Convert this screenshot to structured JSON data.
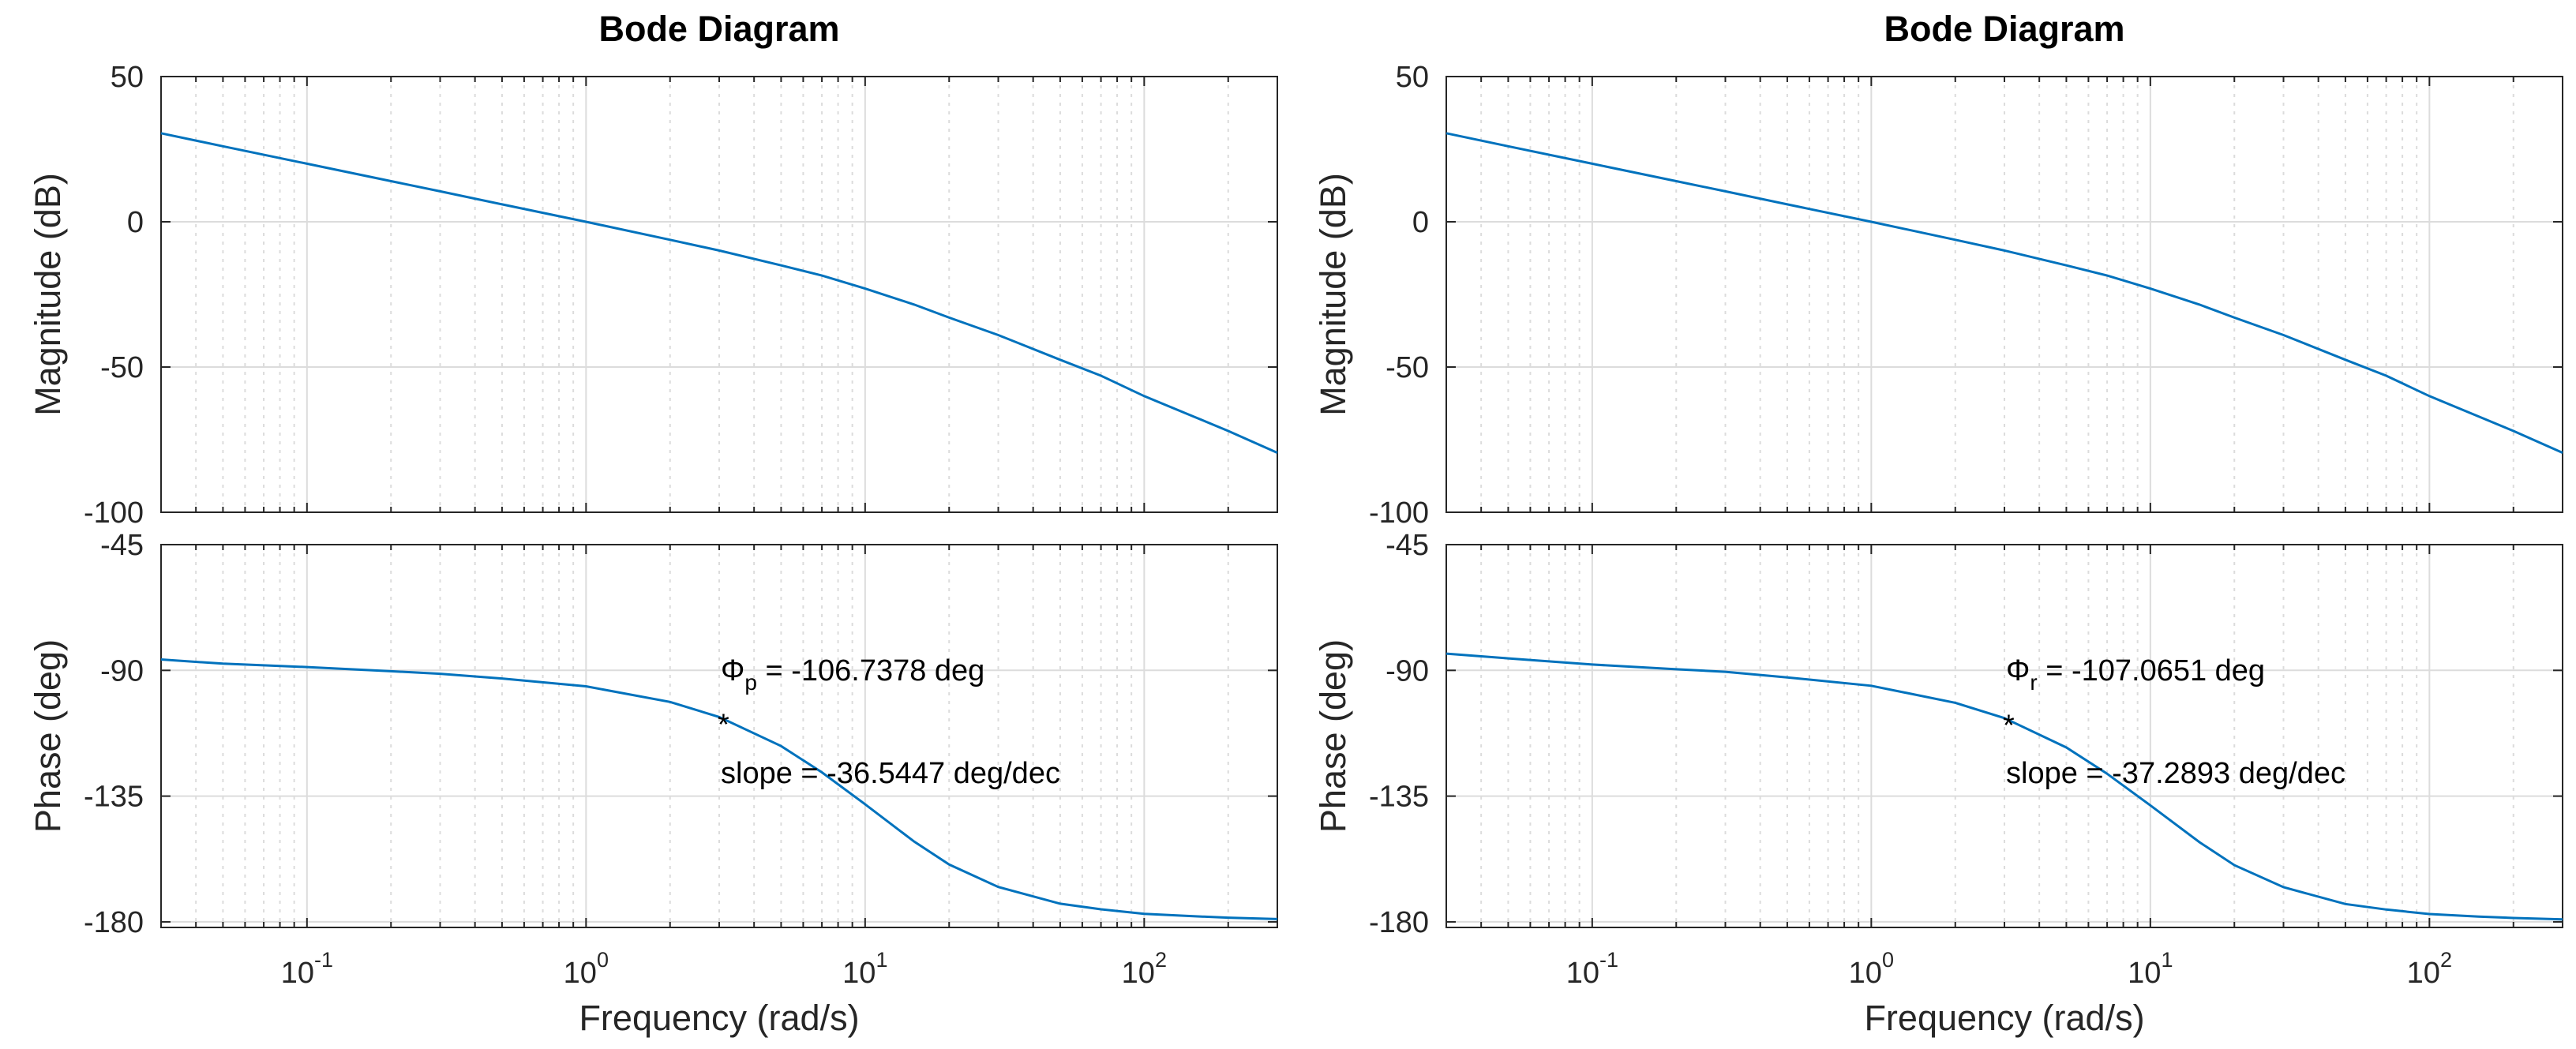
{
  "chart_data": [
    {
      "type": "line",
      "title": "Bode Diagram",
      "colors": {
        "line": "#0072BD"
      },
      "xlabel": "Frequency  (rad/s)",
      "xscale": "log",
      "xlim": [
        0.03,
        300
      ],
      "xticks": [
        {
          "value": 0.1,
          "base": "10",
          "exp": "-1"
        },
        {
          "value": 1,
          "base": "10",
          "exp": "0"
        },
        {
          "value": 10,
          "base": "10",
          "exp": "1"
        },
        {
          "value": 100,
          "base": "10",
          "exp": "2"
        }
      ],
      "grid": true,
      "magnitude": {
        "ylabel": "Magnitude (dB)",
        "ylim": [
          -100,
          50
        ],
        "yticks": [
          "50",
          "0",
          "-50",
          "-100"
        ],
        "series": [
          {
            "name": "magnitude",
            "x": [
              0.03,
              0.05,
              0.1,
              0.2,
              0.3,
              0.5,
              1,
              2,
              3,
              5,
              7,
              10,
              15,
              20,
              30,
              50,
              70,
              100,
              150,
              200,
              300
            ],
            "y": [
              30.5,
              26.0,
              20.0,
              14.0,
              10.5,
              6.0,
              0.0,
              -6.2,
              -9.9,
              -15.0,
              -18.5,
              -23.0,
              -28.5,
              -33.0,
              -39.0,
              -47.5,
              -53.0,
              -60.0,
              -67.0,
              -72.0,
              -79.5
            ]
          }
        ]
      },
      "phase": {
        "ylabel": "Phase (deg)",
        "ylim": [
          -182,
          -45
        ],
        "yticks": [
          "-45",
          "-90",
          "-135",
          "-180"
        ],
        "series": [
          {
            "name": "phase",
            "x": [
              0.03,
              0.05,
              0.1,
              0.2,
              0.3,
              0.5,
              1,
              2,
              3,
              5,
              7,
              10,
              15,
              20,
              30,
              50,
              70,
              100,
              150,
              200,
              300
            ],
            "y": [
              -86.1,
              -87.6,
              -88.8,
              -90.3,
              -91.2,
              -92.9,
              -95.7,
              -101.3,
              -106.7,
              -117.1,
              -126.5,
              -137.9,
              -151.3,
              -159.5,
              -167.5,
              -173.5,
              -175.5,
              -177.1,
              -178.0,
              -178.5,
              -179.0
            ]
          }
        ],
        "annotation": {
          "symbol": "Φ",
          "subscript": "p",
          "phase_text": " = -106.7378 deg",
          "marker": "*",
          "x": 3,
          "y": -106.7378,
          "slope_text": "slope = -36.5447 deg/dec"
        }
      }
    },
    {
      "type": "line",
      "title": "Bode Diagram",
      "colors": {
        "line": "#0072BD"
      },
      "xlabel": "Frequency  (rad/s)",
      "xscale": "log",
      "xlim": [
        0.03,
        300
      ],
      "xticks": [
        {
          "value": 0.1,
          "base": "10",
          "exp": "-1"
        },
        {
          "value": 1,
          "base": "10",
          "exp": "0"
        },
        {
          "value": 10,
          "base": "10",
          "exp": "1"
        },
        {
          "value": 100,
          "base": "10",
          "exp": "2"
        }
      ],
      "grid": true,
      "magnitude": {
        "ylabel": "Magnitude (dB)",
        "ylim": [
          -100,
          50
        ],
        "yticks": [
          "50",
          "0",
          "-50",
          "-100"
        ],
        "series": [
          {
            "name": "magnitude",
            "x": [
              0.03,
              0.05,
              0.1,
              0.2,
              0.3,
              0.5,
              1,
              2,
              3,
              5,
              7,
              10,
              15,
              20,
              30,
              50,
              70,
              100,
              150,
              200,
              300
            ],
            "y": [
              30.5,
              26.0,
              20.0,
              14.0,
              10.5,
              6.0,
              0.0,
              -6.2,
              -9.9,
              -15.0,
              -18.5,
              -23.0,
              -28.5,
              -33.0,
              -39.0,
              -47.5,
              -53.0,
              -60.0,
              -67.0,
              -72.0,
              -79.5
            ]
          }
        ]
      },
      "phase": {
        "ylabel": "Phase (deg)",
        "ylim": [
          -182,
          -45
        ],
        "yticks": [
          "-45",
          "-90",
          "-135",
          "-180"
        ],
        "series": [
          {
            "name": "phase",
            "x": [
              0.03,
              0.05,
              0.1,
              0.2,
              0.3,
              0.5,
              1,
              2,
              3,
              5,
              7,
              10,
              15,
              20,
              30,
              50,
              70,
              100,
              150,
              200,
              300
            ],
            "y": [
              -84.0,
              -85.7,
              -87.9,
              -89.6,
              -90.5,
              -92.5,
              -95.5,
              -101.6,
              -107.1,
              -117.6,
              -127.0,
              -138.3,
              -151.5,
              -159.7,
              -167.6,
              -173.6,
              -175.6,
              -177.2,
              -178.1,
              -178.6,
              -179.1
            ]
          }
        ],
        "annotation": {
          "symbol": "Φ",
          "subscript": "r",
          "phase_text": " = -107.0651 deg",
          "marker": "*",
          "x": 3,
          "y": -107.0651,
          "slope_text": "slope = -37.2893 deg/dec"
        }
      }
    }
  ]
}
